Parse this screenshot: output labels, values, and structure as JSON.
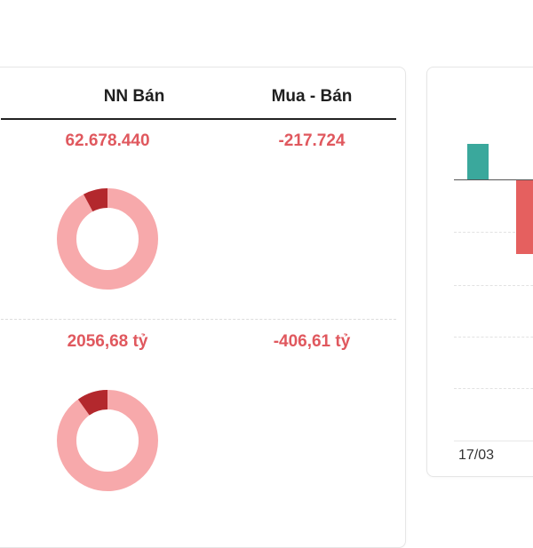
{
  "table": {
    "columns": [
      "NN Bán",
      "Mua - Bán"
    ],
    "rows": [
      {
        "nn_ban": "62.678.440",
        "mua_ban": "-217.724",
        "donut": {
          "buy_fraction": 0.08,
          "buy_color": "#b3282d",
          "sell_color": "#f7a9ab"
        }
      },
      {
        "nn_ban": "2056,68 tỷ",
        "mua_ban": "-406,61 tỷ",
        "donut": {
          "buy_fraction": 0.1,
          "buy_color": "#b3282d",
          "sell_color": "#f7a9ab"
        }
      }
    ]
  },
  "side_chart": {
    "x_tick": "17/03",
    "colors": {
      "positive": "#3aa89c",
      "negative": "#e5605f"
    }
  },
  "chart_data": {
    "type": "bar",
    "categories": [
      "17/03",
      ""
    ],
    "values": [
      1,
      -2.1
    ],
    "title": "",
    "xlabel": "",
    "ylabel": "",
    "grid": true
  }
}
